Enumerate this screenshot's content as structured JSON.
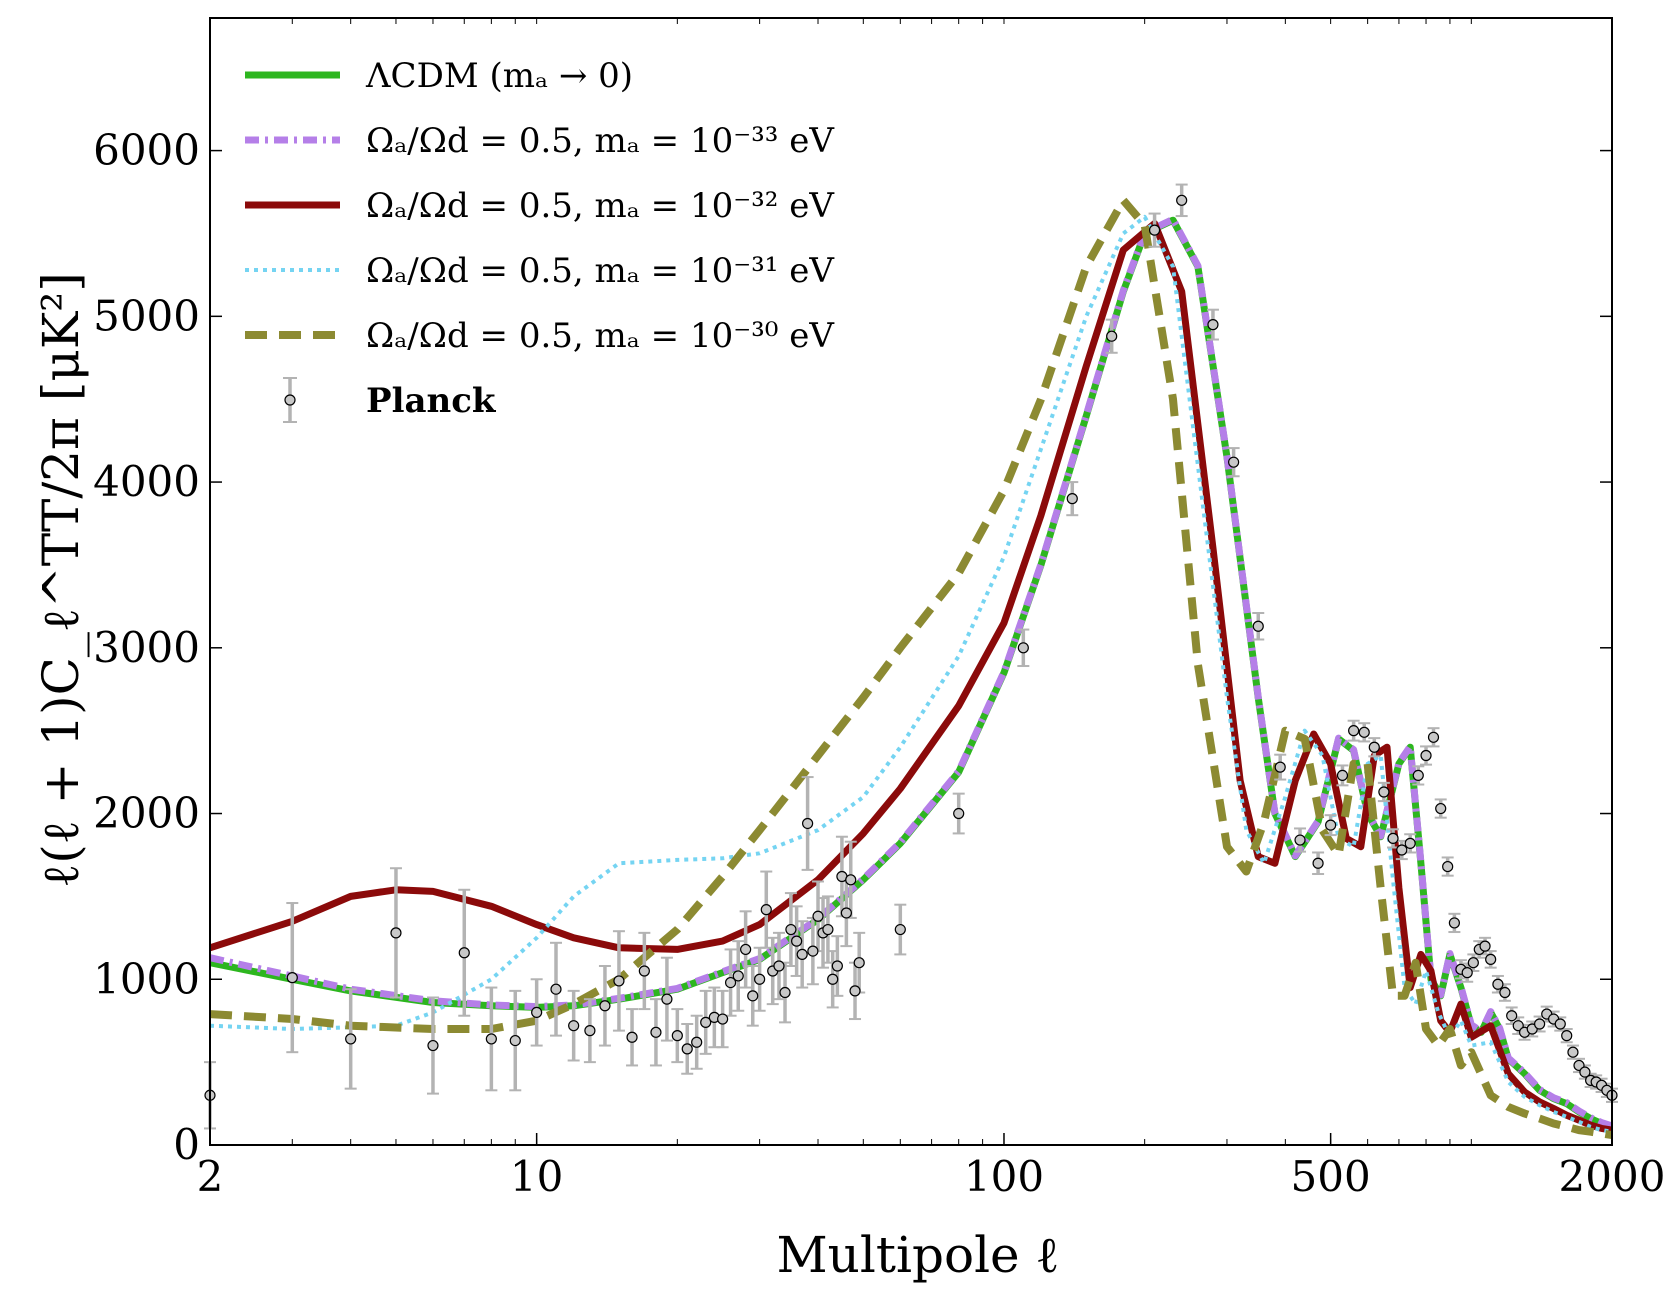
{
  "chart_data": {
    "type": "line",
    "xscale": "log",
    "xlim": [
      2,
      2000
    ],
    "ylim": [
      0,
      6800
    ],
    "xticks": [
      2,
      10,
      100,
      500,
      2000
    ],
    "xtick_labels": [
      "2",
      "10",
      "100",
      "500",
      "2000"
    ],
    "yticks": [
      0,
      1000,
      2000,
      3000,
      4000,
      5000,
      6000
    ],
    "ytick_labels": [
      "0",
      "1000",
      "2000",
      "3000",
      "4000",
      "5000",
      "6000"
    ],
    "xlabel": "Multipole ℓ",
    "ylabel": "ℓ(ℓ + 1)C_ℓ^TT/2π [μK²]",
    "legend_position": "top-left",
    "series": [
      {
        "name": "ΛCDM (m_a → 0)",
        "legend_label": "ΛCDM (mₐ → 0)",
        "color": "#2db61f",
        "style": "solid",
        "x": [
          2,
          3,
          4,
          6,
          8,
          10,
          12,
          15,
          20,
          25,
          30,
          40,
          50,
          60,
          80,
          100,
          120,
          150,
          180,
          200,
          230,
          260,
          300,
          350,
          380,
          420,
          470,
          520,
          560,
          600,
          640,
          700,
          740,
          780,
          820,
          860,
          900,
          950,
          1000,
          1050,
          1100,
          1150,
          1200,
          1300,
          1400,
          1500,
          1600,
          1700,
          1800,
          1900,
          2000
        ],
        "y": [
          1100,
          1000,
          930,
          860,
          840,
          830,
          840,
          880,
          940,
          1040,
          1120,
          1360,
          1600,
          1820,
          2250,
          2850,
          3500,
          4400,
          5150,
          5500,
          5580,
          5300,
          4150,
          2700,
          2000,
          1740,
          1950,
          2450,
          2380,
          2000,
          1860,
          2300,
          2400,
          1700,
          1000,
          900,
          1150,
          950,
          720,
          680,
          800,
          700,
          520,
          430,
          330,
          280,
          250,
          200,
          160,
          130,
          110
        ]
      },
      {
        "name": "Ωa/Ωd = 0.5, ma = 10^-33 eV",
        "legend_label": "Ωₐ/Ωd = 0.5,  mₐ = 10⁻³³ eV",
        "color": "#b57fe8",
        "style": "dashdot",
        "x": [
          2,
          3,
          4,
          6,
          8,
          10,
          12,
          15,
          20,
          25,
          30,
          40,
          50,
          60,
          80,
          100,
          120,
          150,
          180,
          200,
          230,
          260,
          300,
          350,
          380,
          420,
          470,
          520,
          560,
          600,
          640,
          700,
          740,
          780,
          820,
          860,
          900,
          950,
          1000,
          1050,
          1100,
          1150,
          1200,
          1300,
          1400,
          1500,
          1600,
          1700,
          1800,
          1900,
          2000
        ],
        "y": [
          1130,
          1020,
          940,
          870,
          845,
          835,
          845,
          885,
          945,
          1045,
          1125,
          1365,
          1605,
          1825,
          2255,
          2855,
          3505,
          4405,
          5155,
          5505,
          5585,
          5305,
          4155,
          2705,
          2005,
          1745,
          1955,
          2455,
          2385,
          2005,
          1865,
          2305,
          2405,
          1705,
          1005,
          905,
          1155,
          955,
          725,
          685,
          805,
          705,
          525,
          435,
          335,
          285,
          255,
          205,
          165,
          135,
          115
        ]
      },
      {
        "name": "Ωa/Ωd = 0.5, ma = 10^-32 eV",
        "legend_label": "Ωₐ/Ωd = 0.5,  mₐ = 10⁻³² eV",
        "color": "#8b0a0a",
        "style": "solid",
        "x": [
          2,
          3,
          4,
          5,
          6,
          8,
          10,
          12,
          15,
          20,
          25,
          30,
          40,
          50,
          60,
          80,
          100,
          120,
          150,
          180,
          210,
          240,
          280,
          320,
          350,
          380,
          420,
          460,
          500,
          540,
          580,
          620,
          660,
          700,
          740,
          780,
          820,
          860,
          900,
          950,
          1000,
          1100,
          1200,
          1300,
          1400,
          1500,
          1600,
          1700,
          1800,
          1900,
          2000
        ],
        "y": [
          1190,
          1350,
          1500,
          1540,
          1530,
          1440,
          1330,
          1250,
          1190,
          1180,
          1230,
          1330,
          1600,
          1880,
          2150,
          2650,
          3150,
          3800,
          4700,
          5400,
          5560,
          5150,
          3600,
          2200,
          1740,
          1700,
          2200,
          2480,
          2300,
          1850,
          1800,
          2350,
          2400,
          1550,
          950,
          1150,
          1050,
          750,
          680,
          850,
          650,
          720,
          430,
          320,
          260,
          220,
          180,
          150,
          120,
          100,
          90
        ]
      },
      {
        "name": "Ωa/Ωd = 0.5, ma = 10^-31 eV",
        "legend_label": "Ωₐ/Ωd = 0.5,  mₐ = 10⁻³¹ eV",
        "color": "#75d4f2",
        "style": "dotted",
        "x": [
          2,
          3,
          4,
          5,
          6,
          8,
          10,
          12,
          15,
          20,
          25,
          30,
          40,
          50,
          60,
          80,
          100,
          120,
          150,
          180,
          200,
          230,
          260,
          300,
          330,
          360,
          400,
          440,
          480,
          520,
          560,
          600,
          640,
          680,
          720,
          760,
          800,
          850,
          900,
          950,
          1000,
          1100,
          1200,
          1300,
          1400,
          1500,
          1600,
          1700,
          1800,
          1900,
          2000
        ],
        "y": [
          720,
          700,
          710,
          720,
          800,
          1000,
          1250,
          1500,
          1700,
          1720,
          1730,
          1760,
          1900,
          2100,
          2400,
          2950,
          3550,
          4200,
          5000,
          5500,
          5600,
          5300,
          4100,
          2700,
          1900,
          1700,
          2100,
          2500,
          2350,
          1850,
          1800,
          2300,
          2350,
          1600,
          950,
          850,
          1050,
          800,
          650,
          750,
          600,
          620,
          380,
          290,
          240,
          200,
          170,
          140,
          110,
          90,
          80
        ]
      },
      {
        "name": "Ωa/Ωd = 0.5, ma = 10^-30 eV",
        "legend_label": "Ωₐ/Ωd = 0.5,  mₐ = 10⁻³⁰ eV",
        "color": "#8c8a32",
        "style": "dashed",
        "x": [
          2,
          3,
          4,
          6,
          8,
          10,
          12,
          15,
          20,
          25,
          30,
          40,
          50,
          60,
          80,
          100,
          120,
          150,
          180,
          200,
          230,
          260,
          300,
          330,
          360,
          400,
          440,
          480,
          520,
          560,
          600,
          640,
          680,
          720,
          760,
          800,
          850,
          900,
          950,
          1000,
          1100,
          1200,
          1300,
          1400,
          1500,
          1600,
          1700,
          1800,
          1900,
          2000
        ],
        "y": [
          790,
          760,
          720,
          700,
          700,
          750,
          850,
          1000,
          1300,
          1620,
          1900,
          2350,
          2700,
          3000,
          3450,
          3950,
          4500,
          5300,
          5700,
          5550,
          4500,
          2900,
          1800,
          1650,
          1950,
          2500,
          2450,
          1900,
          1750,
          2300,
          2300,
          1550,
          900,
          900,
          1100,
          700,
          600,
          700,
          480,
          560,
          300,
          230,
          190,
          160,
          130,
          110,
          90,
          80,
          70,
          60
        ]
      }
    ],
    "planck": {
      "name": "Planck",
      "marker_color": "#c8c8c8",
      "error_color": "#b3b3b3",
      "x": [
        2,
        3,
        4,
        5,
        6,
        7,
        8,
        9,
        10,
        11,
        12,
        13,
        14,
        15,
        16,
        17,
        18,
        19,
        20,
        21,
        22,
        23,
        24,
        25,
        26,
        27,
        28,
        29,
        30,
        31,
        32,
        33,
        34,
        35,
        36,
        37,
        38,
        39,
        40,
        41,
        42,
        43,
        44,
        45,
        46,
        47,
        48,
        49,
        60,
        80,
        110,
        140,
        170,
        210,
        240,
        280,
        310,
        350,
        390,
        430,
        470,
        500,
        530,
        560,
        590,
        620,
        650,
        680,
        710,
        740,
        770,
        800,
        830,
        860,
        890,
        920,
        950,
        980,
        1010,
        1040,
        1070,
        1100,
        1140,
        1180,
        1220,
        1260,
        1300,
        1350,
        1400,
        1450,
        1500,
        1550,
        1600,
        1650,
        1700,
        1750,
        1800,
        1850,
        1900,
        1950,
        2000
      ],
      "y": [
        300,
        1010,
        640,
        1280,
        600,
        1160,
        640,
        630,
        800,
        940,
        720,
        690,
        840,
        990,
        650,
        1050,
        680,
        880,
        660,
        580,
        620,
        740,
        770,
        760,
        980,
        1020,
        1180,
        900,
        1000,
        1420,
        1050,
        1080,
        920,
        1300,
        1230,
        1150,
        1940,
        1170,
        1380,
        1280,
        1300,
        1000,
        1080,
        1620,
        1400,
        1600,
        930,
        1100,
        1300,
        2000,
        3000,
        3900,
        4880,
        5520,
        5700,
        4950,
        4120,
        3130,
        2280,
        1840,
        1700,
        1930,
        2230,
        2500,
        2490,
        2400,
        2130,
        1850,
        1780,
        1820,
        2230,
        2350,
        2460,
        2030,
        1680,
        1340,
        1060,
        1040,
        1100,
        1180,
        1200,
        1120,
        970,
        920,
        780,
        720,
        680,
        700,
        730,
        790,
        760,
        730,
        660,
        560,
        480,
        440,
        390,
        380,
        360,
        330,
        300
      ],
      "err": [
        200,
        450,
        300,
        390,
        290,
        380,
        310,
        300,
        200,
        280,
        210,
        190,
        240,
        300,
        170,
        230,
        200,
        250,
        160,
        150,
        160,
        190,
        180,
        170,
        200,
        210,
        230,
        180,
        190,
        230,
        200,
        200,
        180,
        220,
        210,
        200,
        280,
        200,
        210,
        210,
        200,
        170,
        180,
        240,
        200,
        230,
        170,
        180,
        150,
        120,
        110,
        100,
        100,
        100,
        95,
        90,
        85,
        80,
        75,
        70,
        65,
        60,
        60,
        60,
        55,
        55,
        55,
        55,
        55,
        55,
        55,
        55,
        55,
        55,
        55,
        55,
        55,
        55,
        50,
        50,
        50,
        50,
        50,
        50,
        50,
        50,
        45,
        45,
        45,
        45,
        45,
        40,
        40,
        40,
        40,
        40,
        40,
        40,
        40,
        40,
        40
      ]
    }
  }
}
